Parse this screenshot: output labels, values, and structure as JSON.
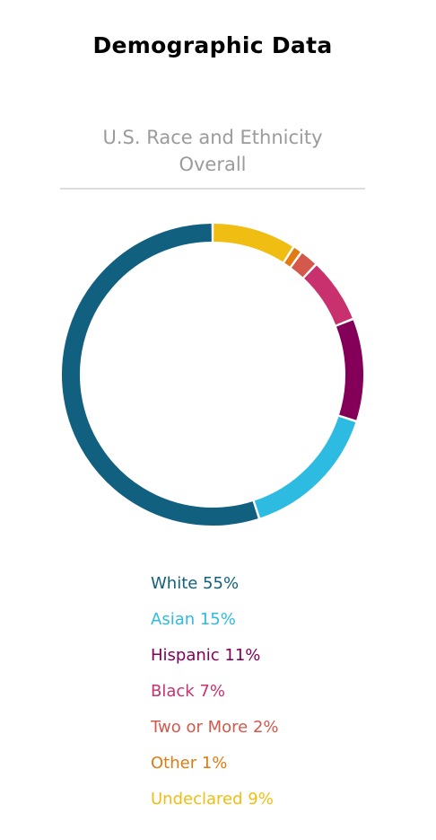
{
  "header": {
    "title": "Demographic Data"
  },
  "chart_data": {
    "type": "pie",
    "title": "U.S. Race and Ethnicity",
    "subtitle": "Overall",
    "variant": "donut",
    "slices": [
      {
        "label": "Undeclared",
        "value": 9,
        "legend": "Undeclared 9%",
        "color": "#f0be12"
      },
      {
        "label": "Other",
        "value": 1,
        "legend": "Other 1%",
        "color": "#e07a12"
      },
      {
        "label": "Two or More",
        "value": 2,
        "legend": "Two or More 2%",
        "color": "#d4584c"
      },
      {
        "label": "Black",
        "value": 7,
        "legend": "Black 7%",
        "color": "#c8316e"
      },
      {
        "label": "Hispanic",
        "value": 11,
        "legend": "Hispanic 11%",
        "color": "#840058"
      },
      {
        "label": "Asian",
        "value": 15,
        "legend": "Asian 15%",
        "color": "#2ebbe2"
      },
      {
        "label": "White",
        "value": 55,
        "legend": "White 55%",
        "color": "#11607f"
      }
    ],
    "legend_order": [
      "White",
      "Asian",
      "Hispanic",
      "Black",
      "Two or More",
      "Other",
      "Undeclared"
    ]
  }
}
